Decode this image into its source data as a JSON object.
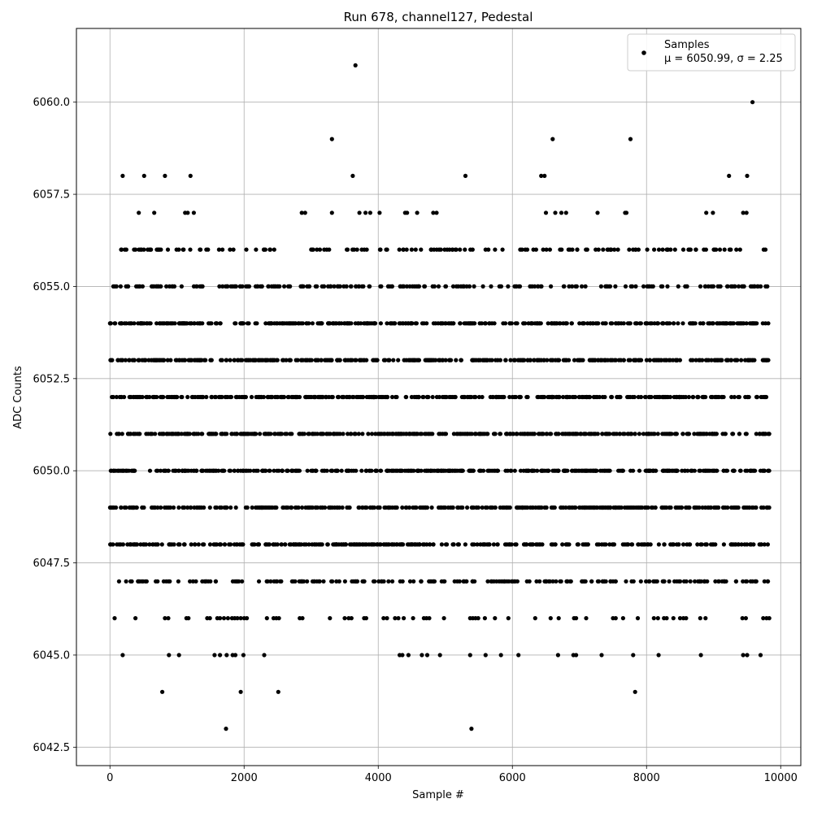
{
  "chart_data": {
    "type": "scatter",
    "title": "Run 678, channel127, Pedestal",
    "xlabel": "Sample #",
    "ylabel": "ADC Counts",
    "xlim": [
      -500,
      10300
    ],
    "ylim": [
      6042,
      6062
    ],
    "x_ticks": [
      0,
      2000,
      4000,
      6000,
      8000,
      10000
    ],
    "x_tick_labels": [
      "0",
      "2000",
      "4000",
      "6000",
      "8000",
      "10000"
    ],
    "y_ticks": [
      6042.5,
      6045.0,
      6047.5,
      6050.0,
      6052.5,
      6055.0,
      6057.5,
      6060.0
    ],
    "y_tick_labels": [
      "6042.5",
      "6045.0",
      "6047.5",
      "6050.0",
      "6052.5",
      "6055.0",
      "6057.5",
      "6060.0"
    ],
    "grid": true,
    "legend_position": "top-right",
    "legend": {
      "label": "Samples",
      "stats": "μ = 6050.99, σ = 2.25"
    },
    "series": [
      {
        "name": "Samples",
        "marker": "circle",
        "color": "#000000",
        "mean": 6050.99,
        "sigma": 2.25,
        "n_samples": 9830,
        "dense_levels": [
          {
            "y": 6047,
            "count": 220
          },
          {
            "y": 6048,
            "count": 330
          },
          {
            "y": 6049,
            "count": 400
          },
          {
            "y": 6050,
            "count": 440
          },
          {
            "y": 6051,
            "count": 420
          },
          {
            "y": 6052,
            "count": 420
          },
          {
            "y": 6053,
            "count": 400
          },
          {
            "y": 6054,
            "count": 380
          },
          {
            "y": 6055,
            "count": 230
          },
          {
            "y": 6056,
            "count": 150
          }
        ],
        "points": [
          {
            "x": 70,
            "y": 6046
          },
          {
            "x": 380,
            "y": 6046
          },
          {
            "x": 820,
            "y": 6046
          },
          {
            "x": 870,
            "y": 6046
          },
          {
            "x": 1140,
            "y": 6046
          },
          {
            "x": 1170,
            "y": 6046
          },
          {
            "x": 1450,
            "y": 6046
          },
          {
            "x": 1490,
            "y": 6046
          },
          {
            "x": 1600,
            "y": 6046
          },
          {
            "x": 1640,
            "y": 6046
          },
          {
            "x": 1700,
            "y": 6046
          },
          {
            "x": 1760,
            "y": 6046
          },
          {
            "x": 1820,
            "y": 6046
          },
          {
            "x": 1860,
            "y": 6046
          },
          {
            "x": 1900,
            "y": 6046
          },
          {
            "x": 1950,
            "y": 6046
          },
          {
            "x": 2000,
            "y": 6046
          },
          {
            "x": 2040,
            "y": 6046
          },
          {
            "x": 2340,
            "y": 6046
          },
          {
            "x": 2440,
            "y": 6046
          },
          {
            "x": 2480,
            "y": 6046
          },
          {
            "x": 2520,
            "y": 6046
          },
          {
            "x": 2830,
            "y": 6046
          },
          {
            "x": 2870,
            "y": 6046
          },
          {
            "x": 3280,
            "y": 6046
          },
          {
            "x": 3500,
            "y": 6046
          },
          {
            "x": 3560,
            "y": 6046
          },
          {
            "x": 3600,
            "y": 6046
          },
          {
            "x": 3790,
            "y": 6046
          },
          {
            "x": 3820,
            "y": 6046
          },
          {
            "x": 4080,
            "y": 6046
          },
          {
            "x": 4130,
            "y": 6046
          },
          {
            "x": 4250,
            "y": 6046
          },
          {
            "x": 4300,
            "y": 6046
          },
          {
            "x": 4380,
            "y": 6046
          },
          {
            "x": 4520,
            "y": 6046
          },
          {
            "x": 4680,
            "y": 6046
          },
          {
            "x": 4720,
            "y": 6046
          },
          {
            "x": 4760,
            "y": 6046
          },
          {
            "x": 4980,
            "y": 6046
          },
          {
            "x": 5370,
            "y": 6046
          },
          {
            "x": 5410,
            "y": 6046
          },
          {
            "x": 5450,
            "y": 6046
          },
          {
            "x": 5490,
            "y": 6046
          },
          {
            "x": 5590,
            "y": 6046
          },
          {
            "x": 5740,
            "y": 6046
          },
          {
            "x": 5940,
            "y": 6046
          },
          {
            "x": 6340,
            "y": 6046
          },
          {
            "x": 6570,
            "y": 6046
          },
          {
            "x": 6690,
            "y": 6046
          },
          {
            "x": 6920,
            "y": 6046
          },
          {
            "x": 6950,
            "y": 6046
          },
          {
            "x": 7100,
            "y": 6046
          },
          {
            "x": 7500,
            "y": 6046
          },
          {
            "x": 7540,
            "y": 6046
          },
          {
            "x": 7650,
            "y": 6046
          },
          {
            "x": 7870,
            "y": 6046
          },
          {
            "x": 8110,
            "y": 6046
          },
          {
            "x": 8170,
            "y": 6046
          },
          {
            "x": 8260,
            "y": 6046
          },
          {
            "x": 8300,
            "y": 6046
          },
          {
            "x": 8400,
            "y": 6046
          },
          {
            "x": 8500,
            "y": 6046
          },
          {
            "x": 8550,
            "y": 6046
          },
          {
            "x": 8590,
            "y": 6046
          },
          {
            "x": 8800,
            "y": 6046
          },
          {
            "x": 8880,
            "y": 6046
          },
          {
            "x": 9430,
            "y": 6046
          },
          {
            "x": 9480,
            "y": 6046
          },
          {
            "x": 9740,
            "y": 6046
          },
          {
            "x": 9790,
            "y": 6046
          },
          {
            "x": 9830,
            "y": 6046
          },
          {
            "x": 190,
            "y": 6045
          },
          {
            "x": 880,
            "y": 6045
          },
          {
            "x": 1030,
            "y": 6045
          },
          {
            "x": 1560,
            "y": 6045
          },
          {
            "x": 1640,
            "y": 6045
          },
          {
            "x": 1740,
            "y": 6045
          },
          {
            "x": 1830,
            "y": 6045
          },
          {
            "x": 1870,
            "y": 6045
          },
          {
            "x": 1990,
            "y": 6045
          },
          {
            "x": 2300,
            "y": 6045
          },
          {
            "x": 4320,
            "y": 6045
          },
          {
            "x": 4360,
            "y": 6045
          },
          {
            "x": 4450,
            "y": 6045
          },
          {
            "x": 4650,
            "y": 6045
          },
          {
            "x": 4730,
            "y": 6045
          },
          {
            "x": 4920,
            "y": 6045
          },
          {
            "x": 5370,
            "y": 6045
          },
          {
            "x": 5600,
            "y": 6045
          },
          {
            "x": 5830,
            "y": 6045
          },
          {
            "x": 6090,
            "y": 6045
          },
          {
            "x": 6680,
            "y": 6045
          },
          {
            "x": 6910,
            "y": 6045
          },
          {
            "x": 6950,
            "y": 6045
          },
          {
            "x": 7330,
            "y": 6045
          },
          {
            "x": 7800,
            "y": 6045
          },
          {
            "x": 8180,
            "y": 6045
          },
          {
            "x": 8810,
            "y": 6045
          },
          {
            "x": 9440,
            "y": 6045
          },
          {
            "x": 9500,
            "y": 6045
          },
          {
            "x": 9700,
            "y": 6045
          },
          {
            "x": 780,
            "y": 6044
          },
          {
            "x": 1950,
            "y": 6044
          },
          {
            "x": 2510,
            "y": 6044
          },
          {
            "x": 7830,
            "y": 6044
          },
          {
            "x": 1730,
            "y": 6043
          },
          {
            "x": 5390,
            "y": 6043
          },
          {
            "x": 430,
            "y": 6057
          },
          {
            "x": 660,
            "y": 6057
          },
          {
            "x": 1120,
            "y": 6057
          },
          {
            "x": 1160,
            "y": 6057
          },
          {
            "x": 1250,
            "y": 6057
          },
          {
            "x": 2860,
            "y": 6057
          },
          {
            "x": 2910,
            "y": 6057
          },
          {
            "x": 3310,
            "y": 6057
          },
          {
            "x": 3720,
            "y": 6057
          },
          {
            "x": 3810,
            "y": 6057
          },
          {
            "x": 3880,
            "y": 6057
          },
          {
            "x": 4020,
            "y": 6057
          },
          {
            "x": 4400,
            "y": 6057
          },
          {
            "x": 4430,
            "y": 6057
          },
          {
            "x": 4580,
            "y": 6057
          },
          {
            "x": 4820,
            "y": 6057
          },
          {
            "x": 4870,
            "y": 6057
          },
          {
            "x": 6500,
            "y": 6057
          },
          {
            "x": 6640,
            "y": 6057
          },
          {
            "x": 6730,
            "y": 6057
          },
          {
            "x": 6800,
            "y": 6057
          },
          {
            "x": 7270,
            "y": 6057
          },
          {
            "x": 7680,
            "y": 6057
          },
          {
            "x": 7700,
            "y": 6057
          },
          {
            "x": 8890,
            "y": 6057
          },
          {
            "x": 8990,
            "y": 6057
          },
          {
            "x": 9440,
            "y": 6057
          },
          {
            "x": 9490,
            "y": 6057
          },
          {
            "x": 190,
            "y": 6058
          },
          {
            "x": 510,
            "y": 6058
          },
          {
            "x": 820,
            "y": 6058
          },
          {
            "x": 1200,
            "y": 6058
          },
          {
            "x": 3620,
            "y": 6058
          },
          {
            "x": 5300,
            "y": 6058
          },
          {
            "x": 6430,
            "y": 6058
          },
          {
            "x": 6480,
            "y": 6058
          },
          {
            "x": 9230,
            "y": 6058
          },
          {
            "x": 9500,
            "y": 6058
          },
          {
            "x": 3310,
            "y": 6059
          },
          {
            "x": 6600,
            "y": 6059
          },
          {
            "x": 7760,
            "y": 6059
          },
          {
            "x": 9580,
            "y": 6060
          },
          {
            "x": 3660,
            "y": 6061
          }
        ]
      }
    ]
  }
}
